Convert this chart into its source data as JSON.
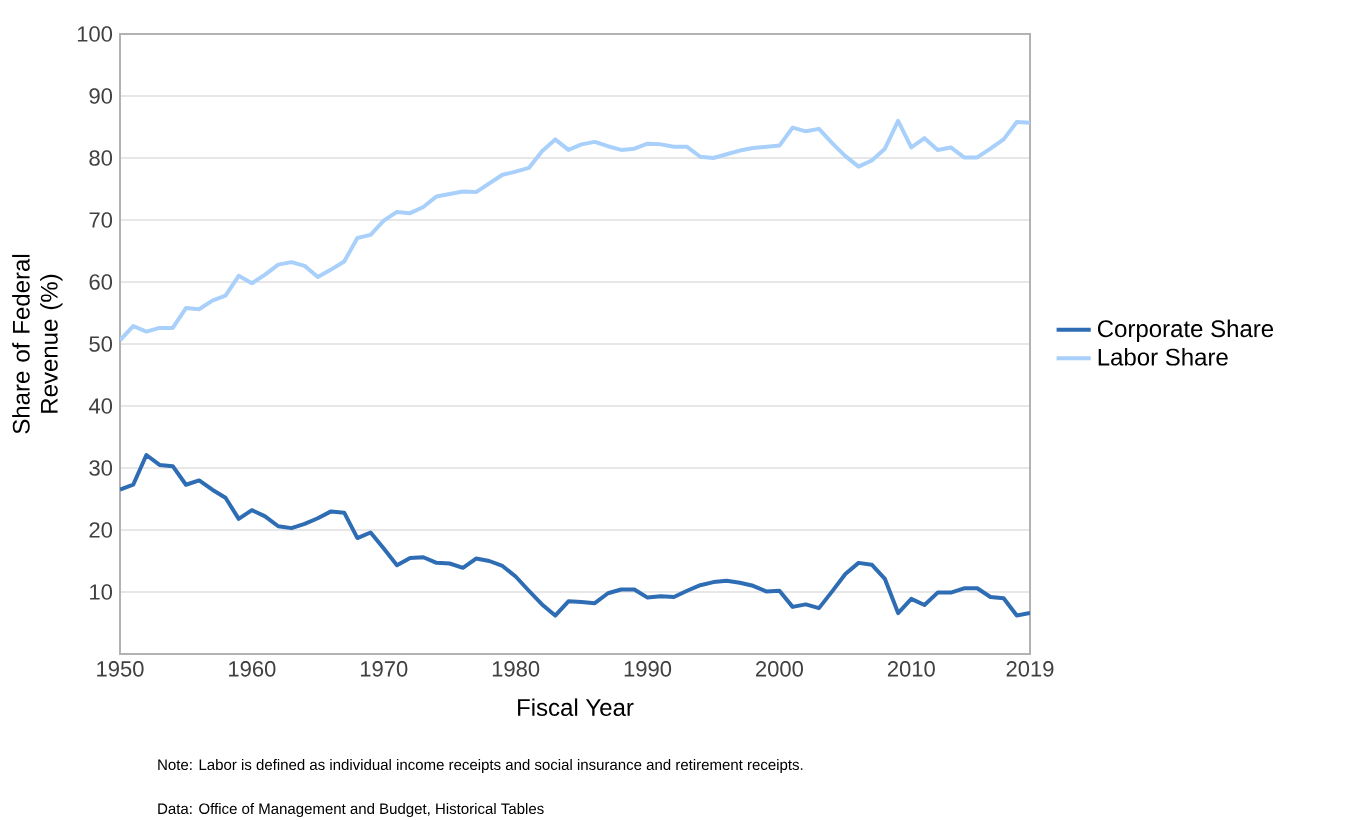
{
  "chart_data": {
    "type": "line",
    "xlabel": "Fiscal Year",
    "ylabel": "Share of Federal Revenue (%)",
    "x": [
      1950,
      1951,
      1952,
      1953,
      1954,
      1955,
      1956,
      1957,
      1958,
      1959,
      1960,
      1961,
      1962,
      1963,
      1964,
      1965,
      1966,
      1967,
      1968,
      1969,
      1970,
      1971,
      1972,
      1973,
      1974,
      1975,
      1976,
      1977,
      1978,
      1979,
      1980,
      1981,
      1982,
      1983,
      1984,
      1985,
      1986,
      1987,
      1988,
      1989,
      1990,
      1991,
      1992,
      1993,
      1994,
      1995,
      1996,
      1997,
      1998,
      1999,
      2000,
      2001,
      2002,
      2003,
      2004,
      2005,
      2006,
      2007,
      2008,
      2009,
      2010,
      2011,
      2012,
      2013,
      2014,
      2015,
      2016,
      2017,
      2018,
      2019
    ],
    "series": [
      {
        "name": "Corporate Share",
        "color": "#2e6db4",
        "values": [
          26.5,
          27.3,
          32.1,
          30.5,
          30.3,
          27.3,
          28.0,
          26.5,
          25.2,
          21.8,
          23.2,
          22.2,
          20.6,
          20.3,
          21.0,
          21.9,
          23.0,
          22.8,
          18.7,
          19.6,
          17.0,
          14.3,
          15.5,
          15.6,
          14.7,
          14.6,
          13.9,
          15.4,
          15.0,
          14.2,
          12.5,
          10.2,
          8.0,
          6.2,
          8.5,
          8.4,
          8.2,
          9.8,
          10.4,
          10.4,
          9.1,
          9.3,
          9.2,
          10.2,
          11.1,
          11.6,
          11.8,
          11.5,
          11.0,
          10.1,
          10.2,
          7.6,
          8.0,
          7.4,
          10.1,
          12.9,
          14.7,
          14.4,
          12.1,
          6.6,
          8.9,
          7.9,
          9.9,
          9.9,
          10.6,
          10.6,
          9.2,
          9.0,
          6.2,
          6.6
        ]
      },
      {
        "name": "Labor Share",
        "color": "#a8d0fb",
        "values": [
          50.6,
          52.9,
          52.0,
          52.6,
          52.6,
          55.8,
          55.6,
          57.0,
          57.8,
          61.0,
          59.8,
          61.2,
          62.8,
          63.2,
          62.6,
          60.8,
          62.0,
          63.3,
          67.1,
          67.6,
          69.9,
          71.3,
          71.1,
          72.1,
          73.8,
          74.2,
          74.6,
          74.5,
          75.9,
          77.3,
          77.8,
          78.4,
          81.1,
          83.0,
          81.3,
          82.2,
          82.6,
          81.9,
          81.3,
          81.5,
          82.3,
          82.2,
          81.8,
          81.8,
          80.2,
          80.0,
          80.6,
          81.2,
          81.6,
          81.8,
          82.0,
          84.9,
          84.3,
          84.7,
          82.4,
          80.3,
          78.6,
          79.6,
          81.5,
          86.0,
          81.7,
          83.2,
          81.3,
          81.7,
          80.1,
          80.1,
          81.5,
          83.0,
          85.8,
          85.7
        ]
      }
    ],
    "xlim": [
      1950,
      2019
    ],
    "ylim": [
      0,
      100
    ],
    "xticks": [
      1950,
      1960,
      1970,
      1980,
      1990,
      2000,
      2010,
      2019
    ],
    "yticks": [
      10,
      20,
      30,
      40,
      50,
      60,
      70,
      80,
      90,
      100
    ],
    "grid": "y",
    "legend": "right",
    "marker": "none",
    "line_style": "solid",
    "annotations": [
      "Note: Labor is defined as individual income receipts and social insurance and retirement receipts.",
      "Data: Office of Management and Budget, Historical Tables"
    ]
  }
}
